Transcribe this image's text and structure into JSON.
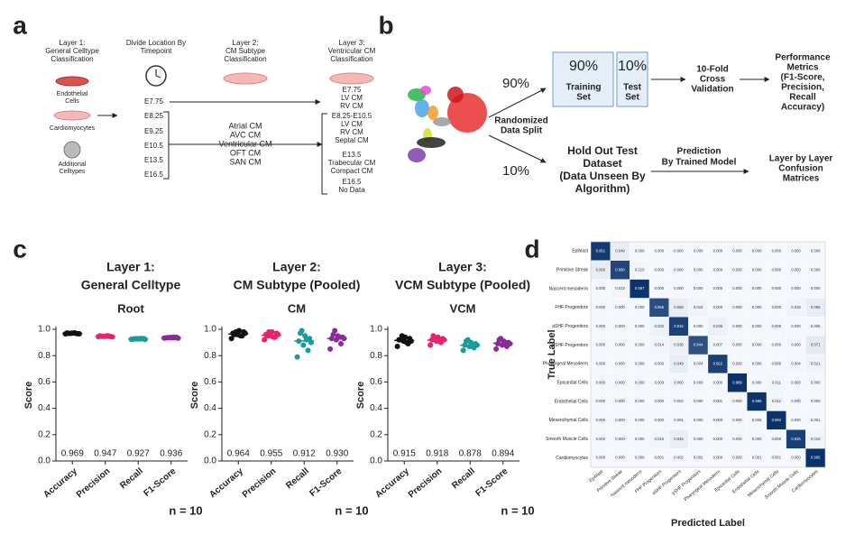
{
  "panel_letters": [
    "a",
    "b",
    "c",
    "d"
  ],
  "diagram_a": {
    "layer1": [
      "Layer 1:",
      "General Celltype",
      "Classification"
    ],
    "cell_types": [
      [
        "Endothelial",
        "Cells"
      ],
      [
        "Cardiomyocytes"
      ],
      [
        "Additional",
        "Celltypes"
      ]
    ],
    "divide": [
      "Divide Location By",
      "Timepoint"
    ],
    "timepoints": [
      "E7.75",
      "E8.25",
      "E9.25",
      "E10.5",
      "E13.5",
      "E16.5"
    ],
    "layer2": [
      "Layer 2:",
      "CM Subtype",
      "Classification"
    ],
    "subtypes": [
      "Atrial CM",
      "AVC CM",
      "Ventricular CM",
      "OFT CM",
      "SAN CM"
    ],
    "layer3": [
      "Layer 3:",
      "Ventricular CM",
      "Classification"
    ],
    "vcm_groups": [
      [
        "E7.75",
        "LV CM",
        "RV CM"
      ],
      [
        "E8.25-E10.5",
        "LV CM",
        "RV CM",
        "Septal CM"
      ],
      [
        "E13.5",
        "Trabecular CM",
        "Compact CM"
      ],
      [
        "E16.5",
        "No Data"
      ]
    ]
  },
  "diagram_b": {
    "split_top": "90%",
    "split_bottom": "10%",
    "split_label": [
      "Randomized",
      "Data Split"
    ],
    "train_pct": "90%",
    "train": [
      "Training",
      "Set"
    ],
    "test_pct": "10%",
    "test": [
      "Test",
      "Set"
    ],
    "cv": [
      "10-Fold",
      "Cross",
      "Validation"
    ],
    "metrics": [
      "Performance",
      "Metrics",
      "(F1-Score,",
      "Precision,",
      "Recall",
      "Accuracy)"
    ],
    "holdout": [
      "Hold Out Test",
      "Dataset",
      "(Data Unseen By",
      "Algorithm)"
    ],
    "prediction": [
      "Prediction",
      "By Trained Model"
    ],
    "confusion": [
      "Layer by Layer",
      "Confusion",
      "Matrices"
    ]
  },
  "chart_data": [
    {
      "type": "strip",
      "title": [
        "Layer 1:",
        "General Celltype"
      ],
      "subtitle": "Root",
      "ylabel": "Score",
      "n_label": "n = 10",
      "categories": [
        "Accuracy",
        "Precision",
        "Recall",
        "F1-Score"
      ],
      "colors": [
        "#111111",
        "#e8236e",
        "#1a9a9a",
        "#8a2a9a"
      ],
      "values": [
        0.969,
        0.947,
        0.927,
        0.936
      ],
      "value_labels": [
        "0.969",
        "0.947",
        "0.927",
        "0.936"
      ],
      "points": [
        [
          0.965,
          0.968,
          0.97,
          0.972,
          0.967,
          0.971,
          0.969,
          0.966,
          0.973,
          0.969
        ],
        [
          0.944,
          0.948,
          0.946,
          0.95,
          0.945,
          0.949,
          0.947,
          0.943,
          0.951,
          0.947
        ],
        [
          0.924,
          0.927,
          0.929,
          0.925,
          0.93,
          0.926,
          0.928,
          0.923,
          0.931,
          0.927
        ],
        [
          0.933,
          0.936,
          0.938,
          0.934,
          0.939,
          0.935,
          0.937,
          0.932,
          0.94,
          0.936
        ]
      ],
      "ylim": [
        0,
        1
      ],
      "yticks": [
        {
          "value": 0,
          "label": "0.0"
        },
        {
          "value": 0.2,
          "label": "0.2"
        },
        {
          "value": 0.4,
          "label": "0.4"
        },
        {
          "value": 0.6,
          "label": "0.6"
        },
        {
          "value": 0.8,
          "label": "0.8"
        },
        {
          "value": 1,
          "label": "1.0"
        }
      ]
    },
    {
      "type": "strip",
      "title": [
        "Layer 2:",
        "CM Subtype (Pooled)"
      ],
      "subtitle": "CM",
      "ylabel": "Score",
      "n_label": "n = 10",
      "categories": [
        "Accuracy",
        "Precision",
        "Recall",
        "F1-Score"
      ],
      "colors": [
        "#111111",
        "#e8236e",
        "#1a9a9a",
        "#8a2a9a"
      ],
      "values": [
        0.964,
        0.955,
        0.912,
        0.93
      ],
      "value_labels": [
        "0.964",
        "0.955",
        "0.912",
        "0.930"
      ],
      "points": [
        [
          0.93,
          0.95,
          0.96,
          0.97,
          0.98,
          0.99,
          0.96,
          0.97,
          0.95,
          0.98
        ],
        [
          0.92,
          0.94,
          0.95,
          0.96,
          0.97,
          0.98,
          0.95,
          0.96,
          0.94,
          0.98
        ],
        [
          0.79,
          0.84,
          0.88,
          0.91,
          0.93,
          0.95,
          0.97,
          0.9,
          0.92,
          0.99
        ],
        [
          0.85,
          0.89,
          0.92,
          0.93,
          0.94,
          0.95,
          0.96,
          0.93,
          0.94,
          0.99
        ]
      ],
      "ylim": [
        0,
        1
      ],
      "yticks": [
        {
          "value": 0,
          "label": "0.0"
        },
        {
          "value": 0.2,
          "label": "0.2"
        },
        {
          "value": 0.4,
          "label": "0.4"
        },
        {
          "value": 0.6,
          "label": "0.6"
        },
        {
          "value": 0.8,
          "label": "0.8"
        },
        {
          "value": 1,
          "label": "1.0"
        }
      ]
    },
    {
      "type": "strip",
      "title": [
        "Layer 3:",
        "VCM Subtype (Pooled)"
      ],
      "subtitle": "VCM",
      "ylabel": "Score",
      "n_label": "n = 10",
      "categories": [
        "Accuracy",
        "Precision",
        "Recall",
        "F1-Score"
      ],
      "colors": [
        "#111111",
        "#e8236e",
        "#1a9a9a",
        "#8a2a9a"
      ],
      "values": [
        0.915,
        0.918,
        0.878,
        0.894
      ],
      "value_labels": [
        "0.915",
        "0.918",
        "0.878",
        "0.894"
      ],
      "points": [
        [
          0.87,
          0.89,
          0.91,
          0.92,
          0.93,
          0.94,
          0.92,
          0.91,
          0.9,
          0.95
        ],
        [
          0.88,
          0.9,
          0.91,
          0.92,
          0.93,
          0.94,
          0.95,
          0.92,
          0.91,
          0.93
        ],
        [
          0.84,
          0.86,
          0.87,
          0.88,
          0.89,
          0.9,
          0.91,
          0.88,
          0.87,
          0.92
        ],
        [
          0.85,
          0.87,
          0.88,
          0.89,
          0.9,
          0.91,
          0.92,
          0.89,
          0.9,
          0.93
        ]
      ],
      "ylim": [
        0,
        1
      ],
      "yticks": [
        {
          "value": 0,
          "label": "0.0"
        },
        {
          "value": 0.2,
          "label": "0.2"
        },
        {
          "value": 0.4,
          "label": "0.4"
        },
        {
          "value": 0.6,
          "label": "0.6"
        },
        {
          "value": 0.8,
          "label": "0.8"
        },
        {
          "value": 1,
          "label": "1.0"
        }
      ]
    },
    {
      "type": "heatmap",
      "xlabel": "Predicted Label",
      "ylabel": "True Label",
      "colors": [
        "#f4f8fc",
        "#08306b"
      ],
      "labels": [
        "Epiblast",
        "Primitive Streak",
        "Nascent mesoderm",
        "FHF Progenitors",
        "aSHF Progenitors",
        "pSHF Progenitors",
        "Pharyngeal Mesoderm",
        "Epicardial Cells",
        "Endothelial Cells",
        "Mesenchymal Cells",
        "Smooth Muscle Cells",
        "Cardiomyocytes"
      ],
      "values": [
        [
          0.951,
          0.049,
          0,
          0,
          0,
          0,
          0,
          0,
          0,
          0,
          0,
          0
        ],
        [
          0.06,
          0.89,
          0.01,
          0,
          0,
          0,
          0,
          0,
          0,
          0,
          0,
          0
        ],
        [
          0,
          0.013,
          0.987,
          0,
          0,
          0,
          0,
          0,
          0,
          0,
          0,
          0
        ],
        [
          0,
          0,
          0,
          0.855,
          0.055,
          0.018,
          0,
          0,
          0,
          0,
          0.018,
          0.055
        ],
        [
          0,
          0,
          0,
          0.032,
          0.915,
          0,
          0.035,
          0,
          0,
          0.005,
          0,
          0.005
        ],
        [
          0,
          0,
          0,
          0.014,
          0.036,
          0.844,
          0.007,
          0,
          0,
          0,
          0,
          0.071
        ],
        [
          0,
          0,
          0,
          0,
          0.049,
          0.004,
          0.922,
          0,
          0,
          0,
          0.004,
          0.021
        ],
        [
          0,
          0,
          0,
          0,
          0,
          0,
          0,
          0.989,
          0,
          0.011,
          0,
          0
        ],
        [
          0,
          0,
          0,
          0,
          0.002,
          0,
          0.001,
          0,
          0.986,
          0.011,
          0,
          0
        ],
        [
          0,
          0,
          0,
          0,
          0.001,
          0,
          0,
          0,
          0.005,
          0.992,
          0,
          0.001
        ],
        [
          0,
          0,
          0,
          0.015,
          0.045,
          0,
          0,
          0,
          0,
          0,
          0.925,
          0.015
        ],
        [
          0,
          0,
          0,
          0.001,
          0.002,
          0.002,
          0,
          0,
          0.001,
          0.001,
          0,
          0.995
        ]
      ],
      "value_labels": [
        [
          "0.951",
          "0.049",
          "0.000",
          "0.000",
          "0.000",
          "0.000",
          "0.000",
          "0.000",
          "0.000",
          "0.000",
          "0.000",
          "0.000"
        ],
        [
          "0.060",
          "0.890",
          "0.010",
          "0.000",
          "0.000",
          "0.000",
          "0.000",
          "0.000",
          "0.000",
          "0.000",
          "0.000",
          "0.000"
        ],
        [
          "0.000",
          "0.013",
          "0.987",
          "0.000",
          "0.000",
          "0.000",
          "0.000",
          "0.000",
          "0.000",
          "0.000",
          "0.000",
          "0.000"
        ],
        [
          "0.000",
          "0.000",
          "0.000",
          "0.855",
          "0.055",
          "0.018",
          "0.000",
          "0.000",
          "0.000",
          "0.000",
          "0.018",
          "0.055"
        ],
        [
          "0.000",
          "0.000",
          "0.000",
          "0.032",
          "0.915",
          "0.000",
          "0.035",
          "0.000",
          "0.000",
          "0.005",
          "0.000",
          "0.005"
        ],
        [
          "0.000",
          "0.000",
          "0.000",
          "0.014",
          "0.036",
          "0.844",
          "0.007",
          "0.000",
          "0.000",
          "0.000",
          "0.000",
          "0.071"
        ],
        [
          "0.000",
          "0.000",
          "0.000",
          "0.000",
          "0.049",
          "0.004",
          "0.922",
          "0.000",
          "0.000",
          "0.000",
          "0.004",
          "0.021"
        ],
        [
          "0.000",
          "0.000",
          "0.000",
          "0.000",
          "0.000",
          "0.000",
          "0.000",
          "0.989",
          "0.000",
          "0.011",
          "0.000",
          "0.000"
        ],
        [
          "0.000",
          "0.000",
          "0.000",
          "0.000",
          "0.002",
          "0.000",
          "0.001",
          "0.000",
          "0.986",
          "0.011",
          "0.000",
          "0.000"
        ],
        [
          "0.000",
          "0.000",
          "0.000",
          "0.000",
          "0.001",
          "0.000",
          "0.000",
          "0.000",
          "0.005",
          "0.992",
          "0.000",
          "0.001"
        ],
        [
          "0.000",
          "0.000",
          "0.000",
          "0.015",
          "0.045",
          "0.000",
          "0.000",
          "0.000",
          "0.000",
          "0.000",
          "0.925",
          "0.015"
        ],
        [
          "0.000",
          "0.000",
          "0.000",
          "0.001",
          "0.002",
          "0.002",
          "0.000",
          "0.000",
          "0.001",
          "0.001",
          "0.000",
          "0.995"
        ]
      ]
    }
  ]
}
